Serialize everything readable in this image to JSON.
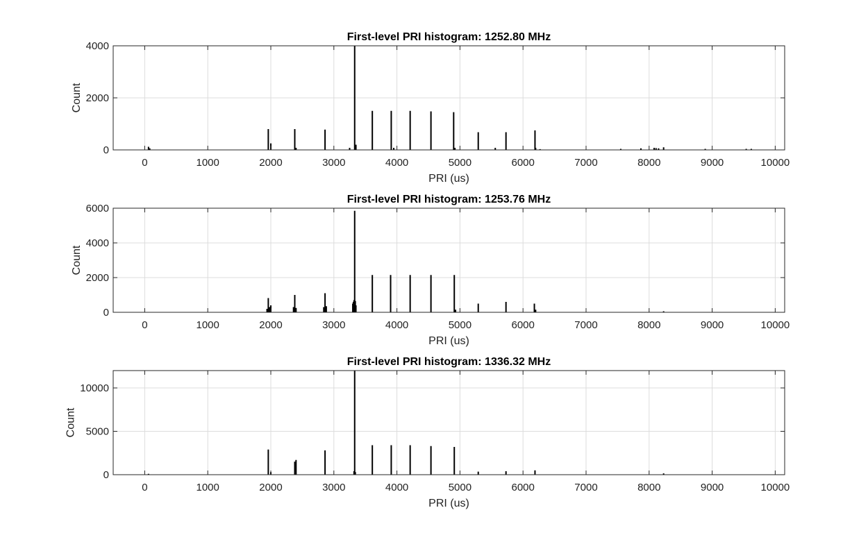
{
  "chart_data": [
    {
      "type": "bar",
      "title": "First-level PRI histogram: 1252.80 MHz",
      "xlabel": "PRI (us)",
      "ylabel": "Count",
      "xlim": [
        -500,
        10150
      ],
      "ylim": [
        0,
        4000
      ],
      "grid": true,
      "xticks": [
        0,
        1000,
        2000,
        3000,
        4000,
        5000,
        6000,
        7000,
        8000,
        9000,
        10000
      ],
      "yticks": [
        0,
        2000,
        4000
      ],
      "x": [
        60,
        80,
        1960,
        2000,
        2380,
        2400,
        2860,
        3250,
        3330,
        3350,
        3610,
        3910,
        3950,
        4210,
        4540,
        4900,
        4920,
        5290,
        5560,
        5730,
        6190,
        6200,
        6270,
        7550,
        7870,
        8080,
        8110,
        8150,
        8230,
        8890,
        9540,
        9620
      ],
      "values": [
        120,
        60,
        800,
        250,
        800,
        80,
        780,
        80,
        4000,
        200,
        1500,
        1500,
        80,
        1500,
        1480,
        1450,
        80,
        680,
        80,
        680,
        750,
        80,
        30,
        40,
        60,
        80,
        70,
        60,
        100,
        40,
        40,
        40
      ]
    },
    {
      "type": "bar",
      "title": "First-level PRI histogram: 1253.76 MHz",
      "xlabel": "PRI (us)",
      "ylabel": "Count",
      "xlim": [
        -500,
        10150
      ],
      "ylim": [
        0,
        6000
      ],
      "grid": true,
      "xticks": [
        0,
        1000,
        2000,
        3000,
        4000,
        5000,
        6000,
        7000,
        8000,
        9000,
        10000
      ],
      "yticks": [
        0,
        2000,
        4000,
        6000
      ],
      "x": [
        1940,
        1960,
        1980,
        2000,
        2360,
        2380,
        2400,
        2840,
        2860,
        2880,
        3300,
        3310,
        3320,
        3330,
        3340,
        3350,
        3610,
        3900,
        4210,
        4540,
        4910,
        4930,
        5290,
        5730,
        6180,
        6200,
        8230
      ],
      "values": [
        200,
        820,
        300,
        400,
        300,
        1000,
        250,
        300,
        1100,
        350,
        500,
        600,
        700,
        5850,
        650,
        400,
        2150,
        2150,
        2150,
        2150,
        2150,
        150,
        500,
        600,
        500,
        150,
        60
      ]
    },
    {
      "type": "bar",
      "title": "First-level PRI histogram: 1336.32 MHz",
      "xlabel": "PRI (us)",
      "ylabel": "Count",
      "xlim": [
        -500,
        10150
      ],
      "ylim": [
        0,
        12000
      ],
      "grid": true,
      "xticks": [
        0,
        1000,
        2000,
        3000,
        4000,
        5000,
        6000,
        7000,
        8000,
        9000,
        10000
      ],
      "yticks": [
        0,
        5000,
        10000
      ],
      "x": [
        60,
        1960,
        2000,
        2380,
        2400,
        2860,
        3320,
        3330,
        3340,
        3610,
        3910,
        4210,
        4540,
        4910,
        5290,
        5730,
        6190,
        8230
      ],
      "values": [
        100,
        2900,
        300,
        1500,
        1700,
        2800,
        400,
        12000,
        300,
        3400,
        3400,
        3400,
        3300,
        3200,
        350,
        400,
        500,
        150
      ]
    }
  ]
}
